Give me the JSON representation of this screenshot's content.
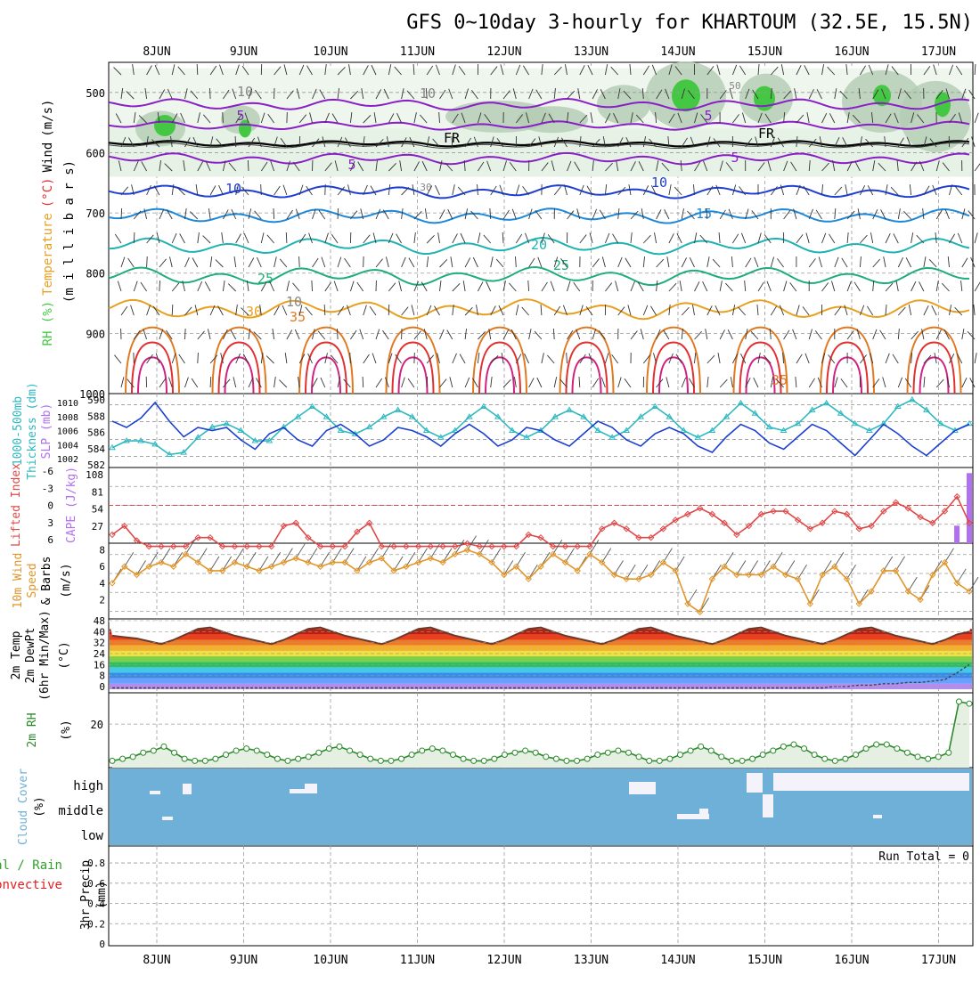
{
  "title": "GFS 0~10day 3-hourly for KHARTOUM (32.5E, 15.5N)",
  "colors": {
    "grid": "#9a9a9a",
    "purple": "#8a1fc7",
    "blue_dark": "#1f3fd4",
    "blue_mid": "#1e88d8",
    "teal": "#1fb2b2",
    "green_teal": "#1fae7a",
    "orange": "#e8a020",
    "orange_dark": "#e07a20",
    "red": "#e03030",
    "pink": "#d02080",
    "rh_green": "#44c844",
    "slp_blue": "#1a3fd0",
    "thick_cyan": "#2fb9c0",
    "lifted_red": "#e04848",
    "cape_purple": "#b070f0",
    "wind_orange": "#e0962a",
    "rh2m_green": "#2a8a2a",
    "cloud_blue": "#6fb0d8",
    "precip_green": "#33a02c",
    "precip_red": "#e02020"
  },
  "chart_data": [
    {
      "id": "upper_air",
      "type": "line",
      "xticks": [
        "8JUN",
        "9JUN",
        "10JUN",
        "11JUN",
        "12JUN",
        "13JUN",
        "14JUN",
        "15JUN",
        "16JUN",
        "17JUN"
      ],
      "ylabel_parts": [
        "RH (%)",
        "Temperature",
        "(°C)",
        "Wind",
        "(m/s)"
      ],
      "ylabel2": "(m i l l i b a r s)",
      "yticks": [
        "500",
        "600",
        "700",
        "800",
        "900",
        "1000"
      ],
      "ylim": [
        1000,
        450
      ],
      "labels": [
        "5",
        "5",
        "5",
        "5",
        "10",
        "10",
        "15",
        "20",
        "25",
        "25",
        "30",
        "35",
        "35",
        "FR",
        "FR",
        "10",
        "10",
        "30",
        "30",
        "50",
        "50",
        "10"
      ],
      "isotherms": [
        {
          "name": "5",
          "color": "purple",
          "level_mb": 610
        },
        {
          "name": "10",
          "color": "blue_dark",
          "level_mb": 665
        },
        {
          "name": "15",
          "color": "blue_mid",
          "level_mb": 705
        },
        {
          "name": "20",
          "color": "teal",
          "level_mb": 755
        },
        {
          "name": "25",
          "color": "green_teal",
          "level_mb": 805
        },
        {
          "name": "30",
          "color": "orange",
          "level_mb": 860
        }
      ]
    },
    {
      "id": "slp_thickness",
      "type": "line",
      "ylabel_left": [
        "1000-500mb",
        "Thickness (dm)"
      ],
      "ylabel_right": "SLP (mb)",
      "yticks_left": [
        "582",
        "584",
        "586",
        "588",
        "590"
      ],
      "yticks_right": [
        "1002",
        "1004",
        "1006",
        "1008",
        "1010"
      ],
      "series": [
        {
          "name": "SLP (mb)",
          "values": [
            1007,
            1006,
            1007.5,
            1010,
            1007,
            1004.5,
            1006,
            1005.5,
            1006,
            1004,
            1002.5,
            1005,
            1006,
            1004,
            1003,
            1005.5,
            1006.5,
            1005,
            1003,
            1004,
            1006,
            1005.5,
            1004.5,
            1003,
            1005,
            1006.5,
            1005,
            1003,
            1004,
            1006,
            1005.5,
            1004,
            1003,
            1005,
            1007,
            1006,
            1004,
            1003,
            1005,
            1006,
            1005,
            1003,
            1002,
            1004.5,
            1006.5,
            1005.5,
            1003.5,
            1002.5,
            1004.5,
            1006.5,
            1005.5,
            1003.5,
            1001.5,
            1004,
            1006.5,
            1005,
            1003,
            1001.5,
            1003.5,
            1005.5,
            1006.5
          ]
        },
        {
          "name": "Thickness (dm)",
          "values": [
            583.5,
            584.5,
            584.5,
            584,
            582.5,
            582.8,
            585,
            586.5,
            587,
            586,
            584.5,
            584.5,
            586.5,
            588,
            589.5,
            588,
            586,
            585.5,
            586.5,
            588,
            589,
            588,
            586,
            585,
            586,
            588,
            589.5,
            588,
            586,
            585,
            586,
            588,
            589,
            588,
            586,
            585,
            586,
            588,
            589.5,
            588,
            586,
            585,
            586,
            588,
            590,
            588.5,
            586.5,
            586,
            587,
            589,
            590,
            588.5,
            587,
            586,
            587,
            589.5,
            590.5,
            589,
            587,
            586,
            587
          ]
        }
      ]
    },
    {
      "id": "lifted_cape",
      "type": "line",
      "ylabel_left": "Lifted Index",
      "ylabel_right": "CAPE (J/kg)",
      "yticks_left": [
        "-6",
        "-3",
        "0",
        "3",
        "6"
      ],
      "yticks_right": [
        "108",
        "81",
        "54",
        "27"
      ],
      "series": [
        {
          "name": "Lifted Index",
          "values": [
            5,
            3.5,
            6,
            7,
            7,
            7,
            7,
            5.5,
            5.5,
            7,
            7,
            7,
            7,
            7,
            3.5,
            3,
            5.5,
            7,
            7,
            7,
            4.5,
            3,
            7,
            7,
            7,
            7,
            7,
            7,
            7,
            6.5,
            7,
            7,
            7,
            7,
            5,
            5.5,
            7,
            7,
            7,
            7,
            4,
            3,
            4,
            5.5,
            5.5,
            4,
            2.5,
            1.5,
            0.5,
            1.5,
            3,
            5,
            3.5,
            1.5,
            1,
            1,
            2.5,
            4,
            3,
            1,
            1.5,
            4,
            3.5,
            1,
            -0.5,
            0.5,
            2,
            3,
            1,
            -1.5,
            3
          ]
        },
        {
          "name": "CAPE (J/kg)",
          "values": [
            0,
            0,
            0,
            0,
            0,
            0,
            0,
            0,
            0,
            0,
            0,
            0,
            0,
            0,
            0,
            0,
            0,
            0,
            0,
            0,
            0,
            0,
            0,
            0,
            0,
            0,
            0,
            0,
            0,
            0,
            0,
            0,
            0,
            0,
            0,
            0,
            0,
            0,
            0,
            0,
            0,
            0,
            0,
            0,
            0,
            0,
            0,
            0,
            0,
            0,
            0,
            0,
            0,
            0,
            0,
            0,
            0,
            0,
            0,
            0,
            0,
            0,
            0,
            0,
            0,
            0,
            0,
            0,
            25,
            100
          ]
        }
      ]
    },
    {
      "id": "wind10m",
      "type": "line",
      "ylabel_parts": [
        "10m Wind",
        "Speed",
        "& Barbs",
        "(m/s)"
      ],
      "yticks": [
        "2",
        "4",
        "6",
        "8"
      ],
      "series": [
        {
          "name": "10m Wind Speed",
          "values": [
            4,
            6,
            5,
            6,
            6.5,
            6,
            7.5,
            6.5,
            5.5,
            5.5,
            6.5,
            6,
            5.5,
            6,
            6.5,
            7,
            6.5,
            6,
            6.5,
            6.5,
            5.5,
            6.5,
            7,
            5.5,
            6,
            6.5,
            7,
            6.5,
            7.5,
            8,
            7.5,
            6.5,
            5,
            6,
            4.5,
            6,
            7.5,
            6.5,
            5.5,
            7.5,
            6.5,
            5,
            4.5,
            4.5,
            5,
            6.5,
            5.5,
            1.5,
            0.5,
            4.5,
            6,
            5,
            5,
            5,
            6,
            5,
            4.5,
            1.5,
            5,
            6,
            4.5,
            1.5,
            3,
            5.5,
            5.5,
            3,
            2,
            5,
            6.5,
            4,
            3
          ]
        }
      ]
    },
    {
      "id": "temp2m",
      "type": "area",
      "ylabel_parts": [
        "2m Temp",
        "2m DewPt",
        "(6hr Min/Max)",
        "(°C)"
      ],
      "yticks": [
        "0",
        "8",
        "16",
        "24",
        "32",
        "40",
        "48"
      ],
      "series": [
        {
          "name": "2m Temp",
          "values": [
            37,
            36,
            35,
            33,
            31,
            34,
            38,
            42,
            43,
            40,
            37,
            35,
            33,
            31,
            34,
            38,
            42,
            43,
            40,
            37,
            35,
            33,
            31,
            34,
            38,
            42,
            43,
            40,
            37,
            35,
            33,
            31,
            34,
            38,
            42,
            43,
            40,
            37,
            35,
            33,
            31,
            34,
            38,
            42,
            43,
            40,
            37,
            35,
            33,
            31,
            34,
            38,
            42,
            43,
            40,
            37,
            35,
            33,
            31,
            34,
            38,
            42,
            43,
            40,
            37,
            35,
            33,
            31,
            34,
            38,
            40
          ]
        },
        {
          "name": "2m DewPt",
          "values": [
            -1,
            -1,
            -1,
            -1,
            -1,
            -1,
            -1,
            -1,
            -1,
            -1,
            -1,
            -1,
            -1,
            -1,
            -1,
            -1,
            -1,
            -1,
            -1,
            -1,
            -1,
            -1,
            -1,
            -1,
            -1,
            -1,
            -1,
            -1,
            -1,
            -1,
            -1,
            -1,
            -1,
            -1,
            -1,
            -1,
            -1,
            -1,
            -1,
            -1,
            -1,
            -1,
            -1,
            -1,
            -1,
            -1,
            -1,
            -1,
            -1,
            -1,
            -1,
            -1,
            -1,
            -1,
            -1,
            -1,
            -1,
            -1,
            -1,
            0,
            0,
            1,
            1,
            2,
            2,
            3,
            3,
            4,
            5,
            10,
            16
          ]
        }
      ]
    },
    {
      "id": "rh2m",
      "type": "line",
      "ylabel_parts": [
        "2m RH",
        "(%)"
      ],
      "yticks": [
        "20"
      ],
      "series": [
        {
          "name": "2m RH",
          "values": [
            2,
            3,
            4,
            6,
            7,
            9,
            6,
            3,
            2,
            2,
            3,
            5,
            7,
            8,
            7,
            5,
            3,
            2,
            3,
            4,
            6,
            8,
            9,
            7,
            5,
            3,
            2,
            2,
            3,
            5,
            7,
            8,
            7,
            5,
            3,
            2,
            2,
            3,
            5,
            6,
            7,
            6,
            4,
            3,
            2,
            2,
            3,
            5,
            6,
            7,
            6,
            4,
            2,
            2,
            3,
            5,
            7,
            9,
            7,
            4,
            2,
            2,
            3,
            5,
            7,
            9,
            10,
            8,
            5,
            3,
            2,
            3,
            5,
            8,
            10,
            10,
            8,
            6,
            4,
            3,
            4,
            6,
            31,
            30
          ]
        }
      ]
    },
    {
      "id": "cloud",
      "type": "heatmap",
      "ylabel_parts": [
        "Cloud Cover",
        "(%)"
      ],
      "levels": [
        "high",
        "middle",
        "low"
      ]
    },
    {
      "id": "precip",
      "type": "bar",
      "ylabel_left_parts": [
        "Total / Rain",
        "Convective"
      ],
      "ylabel_parts": [
        "3hr Precip",
        "(mm)"
      ],
      "yticks": [
        "0",
        "0.2",
        "0.4",
        "0.6",
        "0.8"
      ],
      "run_total": "Run Total = 0",
      "values": []
    }
  ]
}
